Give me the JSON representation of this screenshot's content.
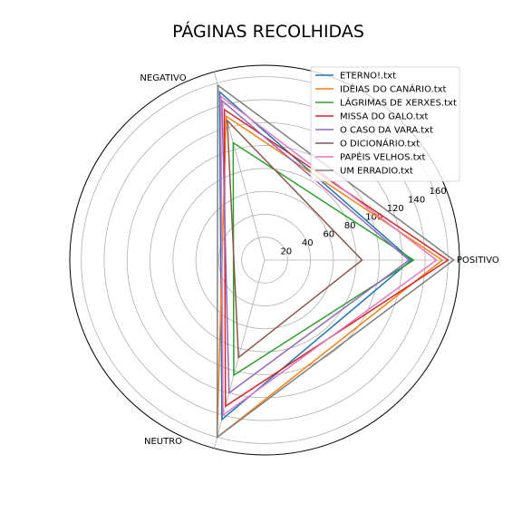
{
  "chart_data": {
    "type": "radar",
    "title": "PÁGINAS RECOLHIDAS",
    "axes": [
      "POSITIVO",
      "NEGATIVO",
      "NEUTRO"
    ],
    "radial_ticks": [
      20,
      40,
      60,
      80,
      100,
      120,
      140,
      160
    ],
    "rlim": [
      0,
      170
    ],
    "grid": true,
    "legend_position": "top-right",
    "series": [
      {
        "name": "ETERNO!.txt",
        "color": "#1f77b4",
        "values": [
          128,
          152,
          144
        ]
      },
      {
        "name": "IDÉIAS DO CANÁRIO.txt",
        "color": "#ff7f0e",
        "values": [
          155,
          130,
          160
        ]
      },
      {
        "name": "LÁGRIMAS DE XERXES.txt",
        "color": "#2ca02c",
        "values": [
          130,
          106,
          104
        ]
      },
      {
        "name": "MISSA DO GALO.txt",
        "color": "#d62728",
        "values": [
          160,
          136,
          132
        ]
      },
      {
        "name": "O CASO DA VARA.txt",
        "color": "#9467bd",
        "values": [
          126,
          144,
          120
        ]
      },
      {
        "name": "O DICIONÁRIO.txt",
        "color": "#8c564b",
        "values": [
          85,
          126,
          88
        ]
      },
      {
        "name": "PAPÉIS VELHOS.txt",
        "color": "#e377c2",
        "values": [
          150,
          148,
          140
        ]
      },
      {
        "name": "UM ERRADIO.txt",
        "color": "#7f7f7f",
        "values": [
          165,
          158,
          160
        ]
      }
    ]
  }
}
